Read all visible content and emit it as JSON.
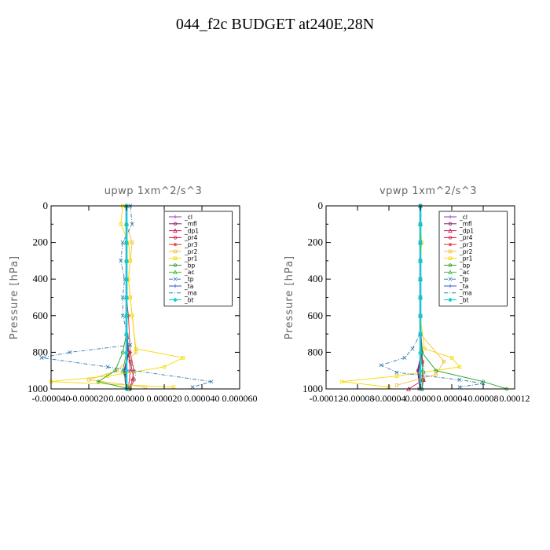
{
  "title": "044_f2c  BUDGET at240E,28N",
  "colors": {
    "_cl": "#8a3fbf",
    "_mfl": "#8b1a6b",
    "_dp1": "#d11a4a",
    "_pr4": "#d11a4a",
    "_pr3": "#e23030",
    "_pr2": "#f0c040",
    "_pr1": "#f5d800",
    "_bp": "#20a020",
    "_ac": "#40c040",
    "_tp": "#2a7ab0",
    "_ta": "#3355cc",
    "_ma": "#2a8aa0",
    "_bt": "#00d0e0"
  },
  "chart_data": [
    {
      "type": "line",
      "title": "upwp   1xm^2/s^3",
      "ylabel": "Pressure [hPa]",
      "ylim": [
        1000,
        0
      ],
      "xlim": [
        -4e-05,
        6e-05
      ],
      "yticks": [
        "0",
        "200",
        "400",
        "600",
        "800",
        "1000"
      ],
      "xticks": [
        "-0.000040",
        "-0.000020",
        "0.000000",
        "0.000020",
        "0.000040",
        "0.000060"
      ],
      "legend_position": "top-right",
      "legend": [
        "_cl",
        "_mfl",
        "_dp1",
        "_pr4",
        "_pr3",
        "_pr2",
        "_pr1",
        "_bp",
        "_ac",
        "_tp",
        "_ta",
        "_ma",
        "_bt"
      ],
      "series": [
        {
          "name": "_cl",
          "x": [
            0,
            0,
            0,
            0,
            0,
            0,
            0,
            0,
            0,
            0,
            0
          ],
          "y": [
            0,
            100,
            200,
            300,
            400,
            500,
            600,
            700,
            800,
            900,
            1000
          ]
        },
        {
          "name": "_mfl",
          "x": [
            0,
            0,
            0,
            0,
            0,
            0,
            0,
            0,
            1e-06,
            -1e-06,
            0
          ],
          "y": [
            0,
            100,
            200,
            300,
            400,
            500,
            600,
            700,
            800,
            900,
            1000
          ]
        },
        {
          "name": "_dp1",
          "x": [
            0,
            0,
            0,
            0,
            0,
            0,
            0,
            0,
            1e-06,
            2e-06,
            1e-06
          ],
          "y": [
            0,
            100,
            200,
            300,
            400,
            500,
            600,
            700,
            800,
            900,
            1000
          ]
        },
        {
          "name": "_pr4",
          "x": [
            0,
            0,
            0,
            0,
            0,
            0,
            0,
            0,
            2e-06,
            4e-06,
            2e-06
          ],
          "y": [
            0,
            100,
            200,
            300,
            400,
            500,
            600,
            700,
            850,
            950,
            1000
          ]
        },
        {
          "name": "_pr3",
          "x": [
            0,
            0,
            0,
            0,
            0,
            0,
            1e-06,
            2e-06,
            4e-06,
            3e-06,
            2e-06
          ],
          "y": [
            0,
            100,
            200,
            300,
            400,
            500,
            600,
            800,
            900,
            950,
            1000
          ]
        },
        {
          "name": "_pr2",
          "x": [
            0,
            0,
            3e-06,
            2e-06,
            1e-06,
            2e-06,
            3e-06,
            5e-06,
            -5e-06,
            -2e-05,
            1e-05
          ],
          "y": [
            0,
            100,
            200,
            300,
            400,
            500,
            600,
            800,
            900,
            950,
            990
          ]
        },
        {
          "name": "_pr1",
          "x": [
            -2e-06,
            -3e-06,
            1e-06,
            2e-06,
            1e-06,
            2e-06,
            3e-06,
            5e-06,
            3e-05,
            2e-05,
            -1e-05,
            -4e-05,
            2.5e-05
          ],
          "y": [
            0,
            100,
            200,
            300,
            400,
            500,
            600,
            780,
            830,
            880,
            930,
            960,
            990
          ]
        },
        {
          "name": "_bp",
          "x": [
            0,
            0,
            0,
            0,
            0,
            0,
            0,
            0,
            -2e-06,
            -6e-06,
            -1.5e-05,
            2e-06
          ],
          "y": [
            0,
            100,
            200,
            300,
            400,
            500,
            600,
            700,
            800,
            900,
            960,
            1000
          ]
        },
        {
          "name": "_ac",
          "x": [
            0,
            0,
            0,
            0,
            0,
            0,
            0,
            0,
            0,
            -2e-06,
            1e-06
          ],
          "y": [
            0,
            100,
            200,
            300,
            400,
            500,
            600,
            700,
            800,
            900,
            1000
          ]
        },
        {
          "name": "_tp",
          "x": [
            2e-06,
            3e-06,
            -2e-06,
            -3e-06,
            -1e-06,
            -2e-06,
            -2e-06,
            2e-06,
            -3e-05,
            -4.5e-05,
            -1e-05,
            4.5e-05,
            3.5e-05
          ],
          "y": [
            0,
            100,
            200,
            300,
            400,
            500,
            600,
            760,
            800,
            830,
            880,
            960,
            990
          ]
        },
        {
          "name": "_ta",
          "x": [
            0,
            0,
            0,
            0,
            0,
            0,
            0,
            0,
            0,
            0,
            0
          ],
          "y": [
            0,
            100,
            200,
            300,
            400,
            500,
            600,
            700,
            800,
            900,
            1000
          ]
        },
        {
          "name": "_ma",
          "x": [
            0,
            0,
            0,
            0,
            0,
            0,
            0,
            0,
            2e-06,
            5e-06,
            1e-06
          ],
          "y": [
            0,
            100,
            200,
            300,
            400,
            500,
            600,
            700,
            850,
            920,
            1000
          ]
        },
        {
          "name": "_bt",
          "x": [
            0,
            0,
            0,
            0,
            0,
            0,
            0,
            0,
            0,
            0,
            0
          ],
          "y": [
            0,
            100,
            200,
            300,
            400,
            500,
            600,
            700,
            800,
            900,
            1000
          ]
        }
      ]
    },
    {
      "type": "line",
      "title": "vpwp   1xm^2/s^3",
      "ylabel": "Pressure [hPa]",
      "ylim": [
        1000,
        0
      ],
      "xlim": [
        -0.00012,
        0.00012
      ],
      "yticks": [
        "0",
        "200",
        "400",
        "600",
        "800",
        "1000"
      ],
      "xticks": [
        "-0.00012",
        "-0.00008",
        "-0.00004",
        "0.00000",
        "0.00004",
        "0.00008",
        "0.00012"
      ],
      "legend_position": "top-right",
      "legend": [
        "_cl",
        "_mfl",
        "_dp1",
        "_pr4",
        "_pr3",
        "_pr2",
        "_pr1",
        "_bp",
        "_ac",
        "_tp",
        "_ta",
        "_ma",
        "_bt"
      ],
      "series": [
        {
          "name": "_cl",
          "x": [
            0,
            0,
            0,
            0,
            0,
            0,
            0,
            0,
            0,
            0,
            0
          ],
          "y": [
            0,
            100,
            200,
            300,
            400,
            500,
            600,
            700,
            800,
            900,
            1000
          ]
        },
        {
          "name": "_mfl",
          "x": [
            0,
            0,
            0,
            0,
            0,
            0,
            0,
            0,
            2e-06,
            -3e-06,
            0
          ],
          "y": [
            0,
            100,
            200,
            300,
            400,
            500,
            600,
            700,
            800,
            900,
            1000
          ]
        },
        {
          "name": "_dp1",
          "x": [
            0,
            0,
            0,
            0,
            0,
            0,
            0,
            0,
            2e-06,
            4e-06,
            -1.5e-05
          ],
          "y": [
            0,
            100,
            200,
            300,
            400,
            500,
            600,
            700,
            850,
            950,
            1000
          ]
        },
        {
          "name": "_pr4",
          "x": [
            0,
            0,
            0,
            0,
            0,
            0,
            0,
            0,
            2e-06,
            4e-06,
            2e-06
          ],
          "y": [
            0,
            100,
            200,
            300,
            400,
            500,
            600,
            700,
            850,
            950,
            1000
          ]
        },
        {
          "name": "_pr3",
          "x": [
            0,
            0,
            0,
            0,
            0,
            0,
            0,
            0,
            3e-06,
            2e-06,
            -2e-06
          ],
          "y": [
            0,
            100,
            200,
            300,
            400,
            500,
            600,
            700,
            850,
            950,
            1000
          ]
        },
        {
          "name": "_pr2",
          "x": [
            0,
            0,
            0,
            0,
            0,
            0,
            0,
            0,
            3e-05,
            2e-05,
            -3e-05
          ],
          "y": [
            0,
            100,
            200,
            300,
            400,
            500,
            600,
            700,
            850,
            920,
            980
          ]
        },
        {
          "name": "_pr1",
          "x": [
            0,
            0,
            2e-06,
            0,
            0,
            0,
            0,
            5e-06,
            4e-05,
            5e-05,
            -3e-05,
            -0.0001,
            -4e-05
          ],
          "y": [
            0,
            100,
            200,
            300,
            400,
            500,
            600,
            780,
            830,
            880,
            930,
            960,
            990
          ]
        },
        {
          "name": "_bp",
          "x": [
            0,
            0,
            0,
            0,
            0,
            0,
            0,
            0,
            2e-06,
            2e-05,
            8e-05,
            0.00011
          ],
          "y": [
            0,
            100,
            200,
            300,
            400,
            500,
            600,
            700,
            800,
            900,
            960,
            1000
          ]
        },
        {
          "name": "_ac",
          "x": [
            0,
            0,
            0,
            0,
            0,
            0,
            0,
            0,
            0,
            3e-06,
            2e-06
          ],
          "y": [
            0,
            100,
            200,
            300,
            400,
            500,
            600,
            700,
            800,
            900,
            1000
          ]
        },
        {
          "name": "_tp",
          "x": [
            0,
            0,
            0,
            0,
            0,
            0,
            0,
            0,
            -1e-05,
            -2e-05,
            -5e-05,
            -3e-05,
            5e-05,
            8e-05,
            5e-05
          ],
          "y": [
            0,
            100,
            200,
            300,
            400,
            500,
            600,
            700,
            780,
            830,
            870,
            910,
            950,
            970,
            990
          ]
        },
        {
          "name": "_ta",
          "x": [
            0,
            0,
            0,
            0,
            0,
            0,
            0,
            0,
            0,
            0,
            0
          ],
          "y": [
            0,
            100,
            200,
            300,
            400,
            500,
            600,
            700,
            800,
            900,
            1000
          ]
        },
        {
          "name": "_ma",
          "x": [
            0,
            0,
            0,
            0,
            0,
            0,
            0,
            0,
            3e-06,
            6e-06,
            2e-06
          ],
          "y": [
            0,
            100,
            200,
            300,
            400,
            500,
            600,
            700,
            850,
            920,
            1000
          ]
        },
        {
          "name": "_bt",
          "x": [
            0,
            0,
            0,
            0,
            0,
            0,
            0,
            0,
            0,
            0,
            0
          ],
          "y": [
            0,
            100,
            200,
            300,
            400,
            500,
            600,
            700,
            800,
            900,
            1000
          ]
        }
      ]
    }
  ]
}
